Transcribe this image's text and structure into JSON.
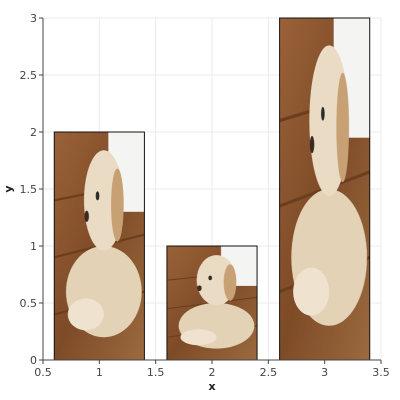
{
  "chart_data": {
    "type": "bar",
    "title": "",
    "xlabel": "x",
    "ylabel": "y",
    "x": [
      1,
      2,
      3
    ],
    "values": [
      2,
      1,
      3
    ],
    "bar_fill": "image of a golden retriever puppy lying on a wooden floor",
    "xlim": [
      0.5,
      3.5
    ],
    "ylim": [
      0,
      3
    ],
    "xticks": [
      "0.5",
      "1",
      "1.5",
      "2",
      "2.5",
      "3",
      "3.5"
    ],
    "yticks": [
      "0",
      "0.5",
      "1",
      "1.5",
      "2",
      "2.5",
      "3"
    ],
    "grid": true
  },
  "colors": {
    "grid": "#ebebeb",
    "axis": "#444444",
    "bar_outline": "#111111",
    "floor_wood": "#8a5530",
    "puppy_fur": "#e8d8bf",
    "background_white": "#ffffff"
  }
}
